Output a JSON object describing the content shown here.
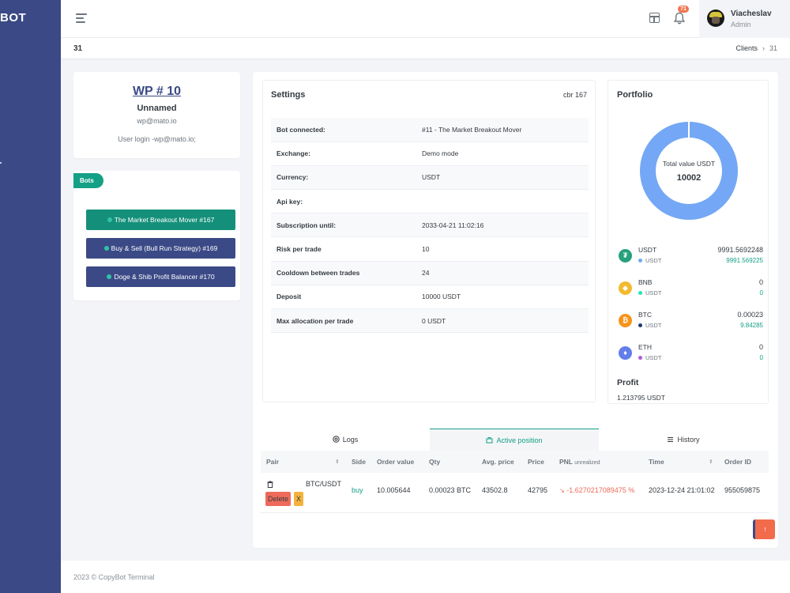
{
  "brand": "BOT",
  "header": {
    "notifications": "71",
    "user_name": "Viacheslav",
    "user_role": "Admin"
  },
  "page": {
    "title": "31",
    "breadcrumb": [
      "Clients",
      "31"
    ]
  },
  "profile": {
    "wp": "WP # 10",
    "name": "Unnamed",
    "email": "wp@mato.io",
    "login": "User login -wp@mato.io;"
  },
  "bots": {
    "label": "Bots",
    "items": [
      {
        "label": "The Market Breakout Mover #167",
        "active": true
      },
      {
        "label": "Buy & Sell (Bull Run Strategy) #169",
        "active": false
      },
      {
        "label": "Doge & Shib Profit Balancer #170",
        "active": false
      }
    ]
  },
  "settings": {
    "title": "Settings",
    "cbr": "cbr 167",
    "rows": [
      {
        "key": "Bot connected:",
        "value": "#11 - The Market Breakout Mover"
      },
      {
        "key": "Exchange:",
        "value": "Demo mode"
      },
      {
        "key": "Currency:",
        "value": "USDT"
      },
      {
        "key": "Api key:",
        "value": ""
      },
      {
        "key": "Subscription until:",
        "value": "2033-04-21 11:02:16"
      },
      {
        "key": "Risk per trade",
        "value": "10"
      },
      {
        "key": "Cooldown between trades",
        "value": "24"
      },
      {
        "key": "Deposit",
        "value": "10000 USDT"
      },
      {
        "key": "Max allocation per trade",
        "value": "0 USDT"
      }
    ]
  },
  "portfolio": {
    "title": "Portfolio",
    "total_label": "Total value USDT",
    "total_value": "10002",
    "donut_color": "#74a7f5",
    "coins": [
      {
        "symbol": "USDT",
        "quote": "USDT",
        "amount": "9991.5692248",
        "usd": "9991.569225",
        "icon": "tether-icon",
        "color": "#26a17b",
        "dot": "#74a7f5"
      },
      {
        "symbol": "BNB",
        "quote": "USDT",
        "amount": "0",
        "usd": "0",
        "icon": "bnb-icon",
        "color": "#f3ba2f",
        "dot": "#1de9b6"
      },
      {
        "symbol": "BTC",
        "quote": "USDT",
        "amount": "0.00023",
        "usd": "9.84285",
        "icon": "bitcoin-icon",
        "color": "#f7931a",
        "dot": "#1f3b73"
      },
      {
        "symbol": "ETH",
        "quote": "USDT",
        "amount": "0",
        "usd": "0",
        "icon": "ethereum-icon",
        "color": "#627eea",
        "dot": "#b05cd6"
      }
    ],
    "profit_label": "Profit",
    "profit_value": "1.213795 USDT"
  },
  "tabs": [
    {
      "label": "Logs",
      "icon": "logs-icon"
    },
    {
      "label": "Active position",
      "icon": "position-icon"
    },
    {
      "label": "History",
      "icon": "list-icon"
    }
  ],
  "positions": {
    "columns": [
      "Pair",
      "Side",
      "Order value",
      "Qty",
      "Avg. price",
      "Price",
      "PNL",
      "unrealized",
      "Time",
      "Order ID"
    ],
    "row": {
      "pair": "BTC/USDT",
      "side": "buy",
      "order_value": "10.005644",
      "qty": "0.00023 BTC",
      "avg_price": "43502.8",
      "price": "42795",
      "pnl": "-1.6270217089475 %",
      "time": "2023-12-24 21:01:02",
      "order_id": "955059875",
      "delete_label": "Delete",
      "x_label": "X"
    }
  },
  "scroll_top": "↑",
  "footer": "2023 © CopyBot Terminal"
}
